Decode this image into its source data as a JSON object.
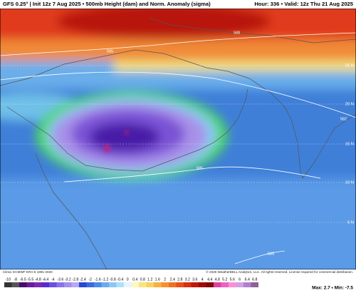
{
  "header": {
    "title": "GFS 0.25° | Init 12z 7 Aug 2025 • 500mb Height (dam) and Norm. Anomaly (sigma)",
    "valid": "Hour: 336 • Valid: 12z Thu 21 Aug 2025"
  },
  "map": {
    "contour_labels": [
      "588",
      "585",
      "582",
      "585",
      "585"
    ],
    "latitude_labels": [
      "25 N",
      "20 N",
      "15 N",
      "10 N",
      "5 N"
    ]
  },
  "footer": {
    "climatology": "Clima: ECMWF ERA-5 1991-2020",
    "copyright": "© 2025 WeatherBELL Analytics, LLC. All rights reserved. License required for commercial distribution.",
    "extremes": "Max: 2.7 • Min: -7.5"
  },
  "colorbar": {
    "ticks": [
      -10,
      -8,
      -6.5,
      -5.5,
      -4.8,
      -4.4,
      -4,
      -3.6,
      -3.2,
      -2.8,
      -2.4,
      -2,
      -1.6,
      -1.2,
      -0.8,
      -0.4,
      0,
      0.4,
      0.8,
      1.2,
      1.6,
      2,
      2.4,
      2.8,
      3.2,
      3.6,
      4,
      4.4,
      4.8,
      5.2,
      5.6,
      6,
      6.4,
      6.8
    ]
  }
}
